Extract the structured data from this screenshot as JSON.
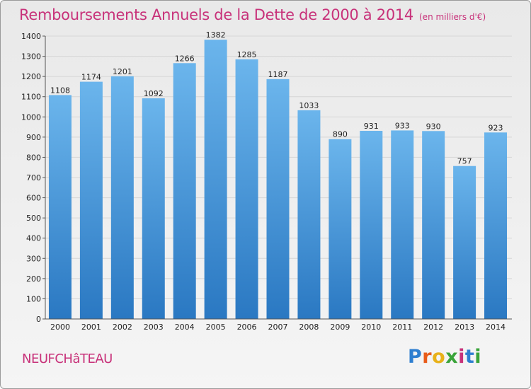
{
  "header": {
    "title": "Remboursements Annuels de la Dette de 2000 à 2014",
    "unit": "(en milliers d'€)"
  },
  "footer": {
    "city": "NEUFCHâTEAU",
    "logo": "Proxiti"
  },
  "colors": {
    "title": "#c8327a",
    "bar_top": "#6bb5ec",
    "bar_bottom": "#2a78c2",
    "grid": "#d6d6d6"
  },
  "chart_data": {
    "type": "bar",
    "title": "Remboursements Annuels de la Dette de 2000 à 2014",
    "subtitle": "(en milliers d'€)",
    "xlabel": "",
    "ylabel": "",
    "categories": [
      "2000",
      "2001",
      "2002",
      "2003",
      "2004",
      "2005",
      "2006",
      "2007",
      "2008",
      "2009",
      "2010",
      "2011",
      "2012",
      "2013",
      "2014"
    ],
    "values": [
      1108,
      1174,
      1201,
      1092,
      1266,
      1382,
      1285,
      1187,
      1033,
      890,
      931,
      933,
      930,
      757,
      923
    ],
    "ylim": [
      0,
      1400
    ],
    "yticks": [
      0,
      100,
      200,
      300,
      400,
      500,
      600,
      700,
      800,
      900,
      1000,
      1100,
      1200,
      1300,
      1400
    ],
    "grid": true,
    "legend": "none"
  }
}
